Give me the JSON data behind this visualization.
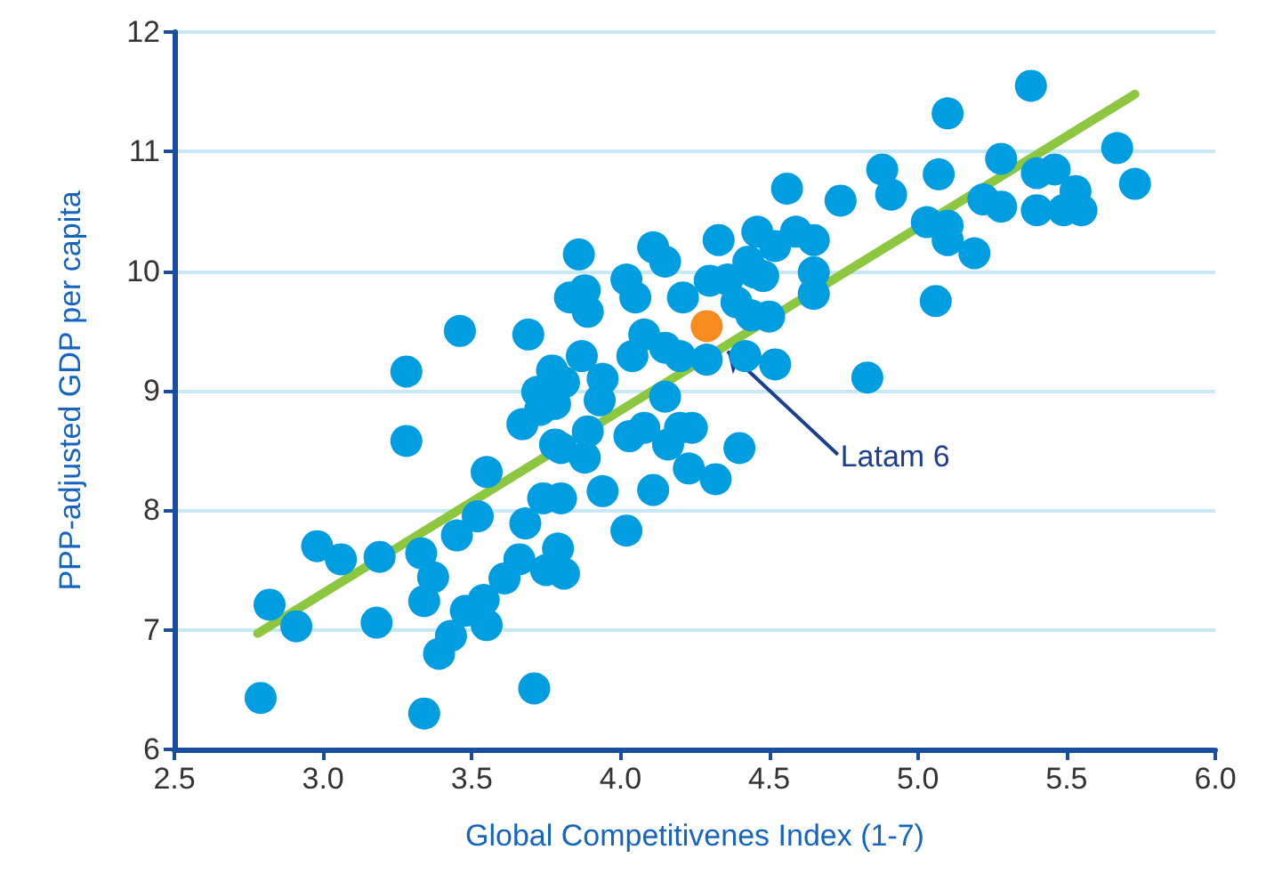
{
  "chart_data": {
    "type": "scatter",
    "xlabel": "Global Competitivenes Index (1-7)",
    "ylabel": "PPP-adjusted GDP per capita",
    "xlim": [
      2.5,
      6
    ],
    "xticks": [
      {
        "value": 2.5,
        "label": "2.5"
      },
      {
        "value": 3,
        "label": "3.0"
      },
      {
        "value": 3.5,
        "label": "3.5"
      },
      {
        "value": 4,
        "label": "4.0"
      },
      {
        "value": 4.5,
        "label": "4.5"
      },
      {
        "value": 5,
        "label": "5.0"
      },
      {
        "value": 5.5,
        "label": "5.5"
      },
      {
        "value": 6,
        "label": "6.0"
      }
    ],
    "ylim": [
      6,
      12
    ],
    "yticks": [
      6,
      7,
      8,
      9,
      10,
      11,
      12
    ],
    "grid": "y",
    "marker": "circle",
    "annotations": [
      {
        "text": "Latam 6",
        "x": 4.36,
        "y": 9.33
      }
    ],
    "series": [
      {
        "color": "#009ee0",
        "x": [
          2.79,
          3.34,
          3.71,
          2.82,
          2.91,
          2.98,
          3.06,
          3.18,
          3.19,
          3.28,
          3.28,
          3.33,
          3.37,
          3.34,
          3.39,
          3.43,
          3.45,
          3.46,
          3.55,
          3.52,
          3.68,
          3.69,
          3.48,
          3.54,
          3.55,
          3.61,
          3.66,
          3.67,
          3.73,
          3.77,
          3.74,
          3.8,
          3.79,
          3.81,
          3.75,
          3.78,
          3.86,
          4.11,
          4.15,
          4.02,
          4.05,
          3.83,
          3.88,
          3.89,
          4.21,
          4.33,
          4.46,
          4.52,
          4.59,
          4.56,
          4.43,
          4.48,
          4.39,
          4.08,
          4.15,
          4.2,
          4.04,
          4.29,
          4.42,
          4.52,
          3.87,
          3.94,
          3.72,
          3.81,
          3.78,
          3.93,
          3.89,
          3.8,
          3.88,
          4.15,
          4.03,
          4.08,
          4.2,
          4.24,
          4.16,
          4.4,
          4.23,
          4.32,
          3.94,
          4.11,
          4.02,
          5.38,
          5.1,
          5.67,
          5.73,
          5.28,
          4.88,
          4.91,
          5.07,
          4.74,
          5.22,
          5.28,
          5.4,
          5.46,
          5.53,
          5.4,
          5.49,
          5.55,
          5.03,
          5.1,
          5.1,
          5.19,
          5.06,
          4.83,
          4.65,
          4.36,
          4.45,
          4.3,
          4.65,
          4.65,
          4.5,
          4.44
        ],
        "values": [
          6.43,
          6.3,
          6.51,
          7.21,
          7.03,
          7.7,
          7.59,
          7.06,
          7.61,
          9.16,
          8.58,
          7.64,
          7.44,
          7.24,
          6.8,
          6.95,
          7.79,
          9.5,
          8.32,
          7.95,
          7.89,
          9.47,
          7.16,
          7.25,
          7.04,
          7.43,
          7.59,
          8.72,
          8.84,
          9.17,
          8.1,
          8.1,
          7.68,
          7.47,
          7.5,
          8.55,
          10.14,
          10.2,
          10.08,
          9.93,
          9.78,
          9.78,
          9.84,
          9.66,
          9.78,
          10.26,
          10.33,
          10.21,
          10.33,
          10.69,
          10.08,
          9.96,
          9.74,
          9.47,
          9.36,
          9.29,
          9.29,
          9.26,
          9.29,
          9.22,
          9.29,
          9.1,
          8.99,
          9.07,
          8.89,
          8.92,
          8.66,
          8.52,
          8.44,
          8.95,
          8.62,
          8.69,
          8.69,
          8.69,
          8.55,
          8.52,
          8.35,
          8.26,
          8.16,
          8.17,
          7.83,
          11.55,
          11.32,
          11.03,
          10.73,
          10.94,
          10.85,
          10.64,
          10.81,
          10.59,
          10.6,
          10.54,
          10.82,
          10.85,
          10.67,
          10.51,
          10.51,
          10.51,
          10.41,
          10.38,
          10.26,
          10.15,
          9.75,
          9.11,
          10.26,
          9.93,
          9.99,
          9.92,
          9.99,
          9.81,
          9.62,
          9.63
        ]
      },
      {
        "color": "#f68b1f",
        "x": [
          4.29
        ],
        "values": [
          9.54
        ]
      },
      {
        "type": "line",
        "color": "#8dc63f",
        "marker": "none",
        "line_style": "solid",
        "x": [
          2.78,
          5.73
        ],
        "values": [
          6.97,
          11.48
        ]
      }
    ]
  }
}
